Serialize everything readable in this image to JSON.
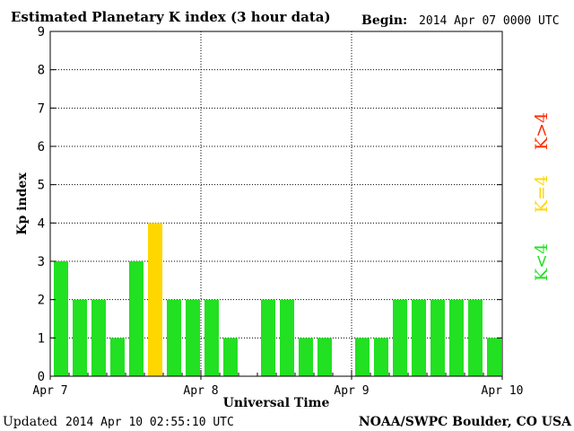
{
  "header": {
    "title": "Estimated Planetary K index (3 hour data)",
    "begin_label": "Begin:",
    "begin_value": "2014 Apr 07 0000 UTC"
  },
  "footer": {
    "updated_label": "Updated",
    "updated_value": "2014 Apr 10 02:55:10 UTC",
    "source": "NOAA/SWPC Boulder, CO USA"
  },
  "legend": [
    {
      "label": "K>4",
      "color": "#ff2a00"
    },
    {
      "label": "K=4",
      "color": "#ffd700"
    },
    {
      "label": "K<4",
      "color": "#22e022"
    }
  ],
  "colors": {
    "below4": "#22e022",
    "equal4": "#ffd700",
    "above4": "#ff2a00"
  },
  "chart_data": {
    "type": "bar",
    "title": "Estimated Planetary K index (3 hour data)",
    "xlabel": "Universal Time",
    "ylabel": "Kp index",
    "ylim": [
      0,
      9
    ],
    "yticks": [
      "0",
      "1",
      "2",
      "3",
      "4",
      "5",
      "6",
      "7",
      "8",
      "9"
    ],
    "xticks": [
      "Apr 7",
      "Apr 8",
      "Apr 9",
      "Apr 10"
    ],
    "grid": true,
    "slots_per_day": 8,
    "values": [
      3,
      2,
      2,
      1,
      3,
      4,
      2,
      2,
      2,
      1,
      null,
      2,
      2,
      1,
      1,
      null,
      1,
      1,
      2,
      2,
      2,
      2,
      2,
      1
    ]
  }
}
